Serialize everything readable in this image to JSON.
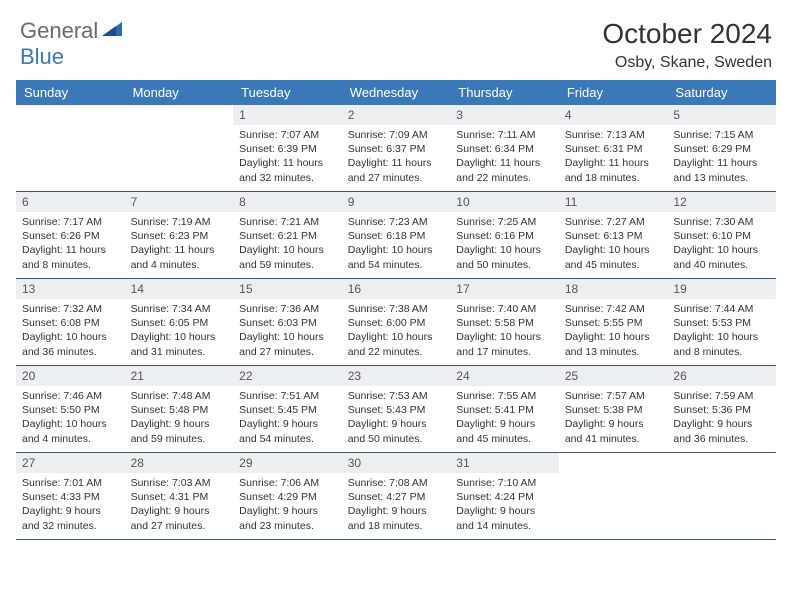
{
  "colors": {
    "header_bg": "#3a78b8",
    "daynum_bg": "#eceff2",
    "border": "#3a5a7a",
    "logo_gray": "#6a6a6a",
    "logo_blue": "#3a78b8",
    "text": "#333333",
    "bg": "#ffffff"
  },
  "logo": {
    "part1": "General",
    "part2": "Blue"
  },
  "title": "October 2024",
  "location": "Osby, Skane, Sweden",
  "weekdays": [
    "Sunday",
    "Monday",
    "Tuesday",
    "Wednesday",
    "Thursday",
    "Friday",
    "Saturday"
  ],
  "weeks": [
    [
      null,
      null,
      {
        "n": "1",
        "sunrise": "Sunrise: 7:07 AM",
        "sunset": "Sunset: 6:39 PM",
        "daylight": "Daylight: 11 hours and 32 minutes."
      },
      {
        "n": "2",
        "sunrise": "Sunrise: 7:09 AM",
        "sunset": "Sunset: 6:37 PM",
        "daylight": "Daylight: 11 hours and 27 minutes."
      },
      {
        "n": "3",
        "sunrise": "Sunrise: 7:11 AM",
        "sunset": "Sunset: 6:34 PM",
        "daylight": "Daylight: 11 hours and 22 minutes."
      },
      {
        "n": "4",
        "sunrise": "Sunrise: 7:13 AM",
        "sunset": "Sunset: 6:31 PM",
        "daylight": "Daylight: 11 hours and 18 minutes."
      },
      {
        "n": "5",
        "sunrise": "Sunrise: 7:15 AM",
        "sunset": "Sunset: 6:29 PM",
        "daylight": "Daylight: 11 hours and 13 minutes."
      }
    ],
    [
      {
        "n": "6",
        "sunrise": "Sunrise: 7:17 AM",
        "sunset": "Sunset: 6:26 PM",
        "daylight": "Daylight: 11 hours and 8 minutes."
      },
      {
        "n": "7",
        "sunrise": "Sunrise: 7:19 AM",
        "sunset": "Sunset: 6:23 PM",
        "daylight": "Daylight: 11 hours and 4 minutes."
      },
      {
        "n": "8",
        "sunrise": "Sunrise: 7:21 AM",
        "sunset": "Sunset: 6:21 PM",
        "daylight": "Daylight: 10 hours and 59 minutes."
      },
      {
        "n": "9",
        "sunrise": "Sunrise: 7:23 AM",
        "sunset": "Sunset: 6:18 PM",
        "daylight": "Daylight: 10 hours and 54 minutes."
      },
      {
        "n": "10",
        "sunrise": "Sunrise: 7:25 AM",
        "sunset": "Sunset: 6:16 PM",
        "daylight": "Daylight: 10 hours and 50 minutes."
      },
      {
        "n": "11",
        "sunrise": "Sunrise: 7:27 AM",
        "sunset": "Sunset: 6:13 PM",
        "daylight": "Daylight: 10 hours and 45 minutes."
      },
      {
        "n": "12",
        "sunrise": "Sunrise: 7:30 AM",
        "sunset": "Sunset: 6:10 PM",
        "daylight": "Daylight: 10 hours and 40 minutes."
      }
    ],
    [
      {
        "n": "13",
        "sunrise": "Sunrise: 7:32 AM",
        "sunset": "Sunset: 6:08 PM",
        "daylight": "Daylight: 10 hours and 36 minutes."
      },
      {
        "n": "14",
        "sunrise": "Sunrise: 7:34 AM",
        "sunset": "Sunset: 6:05 PM",
        "daylight": "Daylight: 10 hours and 31 minutes."
      },
      {
        "n": "15",
        "sunrise": "Sunrise: 7:36 AM",
        "sunset": "Sunset: 6:03 PM",
        "daylight": "Daylight: 10 hours and 27 minutes."
      },
      {
        "n": "16",
        "sunrise": "Sunrise: 7:38 AM",
        "sunset": "Sunset: 6:00 PM",
        "daylight": "Daylight: 10 hours and 22 minutes."
      },
      {
        "n": "17",
        "sunrise": "Sunrise: 7:40 AM",
        "sunset": "Sunset: 5:58 PM",
        "daylight": "Daylight: 10 hours and 17 minutes."
      },
      {
        "n": "18",
        "sunrise": "Sunrise: 7:42 AM",
        "sunset": "Sunset: 5:55 PM",
        "daylight": "Daylight: 10 hours and 13 minutes."
      },
      {
        "n": "19",
        "sunrise": "Sunrise: 7:44 AM",
        "sunset": "Sunset: 5:53 PM",
        "daylight": "Daylight: 10 hours and 8 minutes."
      }
    ],
    [
      {
        "n": "20",
        "sunrise": "Sunrise: 7:46 AM",
        "sunset": "Sunset: 5:50 PM",
        "daylight": "Daylight: 10 hours and 4 minutes."
      },
      {
        "n": "21",
        "sunrise": "Sunrise: 7:48 AM",
        "sunset": "Sunset: 5:48 PM",
        "daylight": "Daylight: 9 hours and 59 minutes."
      },
      {
        "n": "22",
        "sunrise": "Sunrise: 7:51 AM",
        "sunset": "Sunset: 5:45 PM",
        "daylight": "Daylight: 9 hours and 54 minutes."
      },
      {
        "n": "23",
        "sunrise": "Sunrise: 7:53 AM",
        "sunset": "Sunset: 5:43 PM",
        "daylight": "Daylight: 9 hours and 50 minutes."
      },
      {
        "n": "24",
        "sunrise": "Sunrise: 7:55 AM",
        "sunset": "Sunset: 5:41 PM",
        "daylight": "Daylight: 9 hours and 45 minutes."
      },
      {
        "n": "25",
        "sunrise": "Sunrise: 7:57 AM",
        "sunset": "Sunset: 5:38 PM",
        "daylight": "Daylight: 9 hours and 41 minutes."
      },
      {
        "n": "26",
        "sunrise": "Sunrise: 7:59 AM",
        "sunset": "Sunset: 5:36 PM",
        "daylight": "Daylight: 9 hours and 36 minutes."
      }
    ],
    [
      {
        "n": "27",
        "sunrise": "Sunrise: 7:01 AM",
        "sunset": "Sunset: 4:33 PM",
        "daylight": "Daylight: 9 hours and 32 minutes."
      },
      {
        "n": "28",
        "sunrise": "Sunrise: 7:03 AM",
        "sunset": "Sunset: 4:31 PM",
        "daylight": "Daylight: 9 hours and 27 minutes."
      },
      {
        "n": "29",
        "sunrise": "Sunrise: 7:06 AM",
        "sunset": "Sunset: 4:29 PM",
        "daylight": "Daylight: 9 hours and 23 minutes."
      },
      {
        "n": "30",
        "sunrise": "Sunrise: 7:08 AM",
        "sunset": "Sunset: 4:27 PM",
        "daylight": "Daylight: 9 hours and 18 minutes."
      },
      {
        "n": "31",
        "sunrise": "Sunrise: 7:10 AM",
        "sunset": "Sunset: 4:24 PM",
        "daylight": "Daylight: 9 hours and 14 minutes."
      },
      null,
      null
    ]
  ]
}
